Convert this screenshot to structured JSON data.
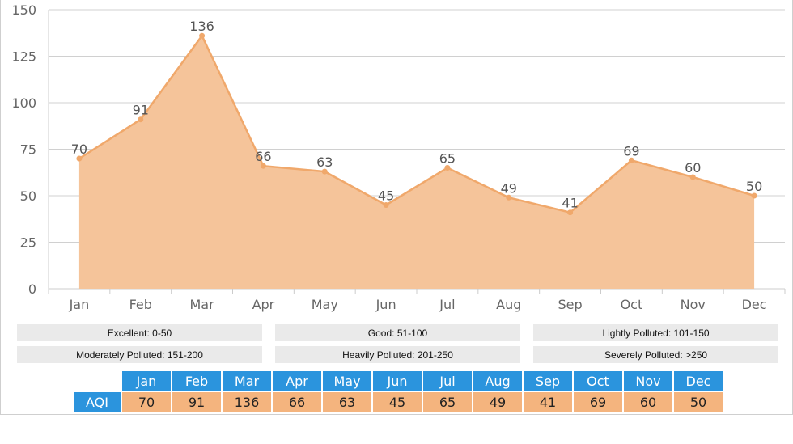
{
  "chart_data": {
    "type": "area",
    "categories": [
      "Jan",
      "Feb",
      "Mar",
      "Apr",
      "May",
      "Jun",
      "Jul",
      "Aug",
      "Sep",
      "Oct",
      "Nov",
      "Dec"
    ],
    "values": [
      70,
      91,
      136,
      66,
      63,
      45,
      65,
      49,
      41,
      69,
      60,
      50
    ],
    "ylim": [
      0,
      150
    ],
    "yticks": [
      "0",
      "25",
      "50",
      "75",
      "100",
      "125",
      "150"
    ],
    "grid": true,
    "fill_color": "#f5c49a",
    "line_color": "#f0a86b"
  },
  "legend": [
    "Excellent: 0-50",
    "Good: 51-100",
    "Lightly Polluted: 101-150",
    "Moderately Polluted: 151-200",
    "Heavily Polluted: 201-250",
    "Severely Polluted: >250"
  ],
  "table": {
    "row_label": "AQI",
    "months": [
      "Jan",
      "Feb",
      "Mar",
      "Apr",
      "May",
      "Jun",
      "Jul",
      "Aug",
      "Sep",
      "Oct",
      "Nov",
      "Dec"
    ],
    "values": [
      "70",
      "91",
      "136",
      "66",
      "63",
      "45",
      "65",
      "49",
      "41",
      "69",
      "60",
      "50"
    ]
  },
  "colors": {
    "header_blue": "#2b94dd",
    "value_orange": "#f4b47e",
    "legend_gray": "#eaeaea"
  }
}
